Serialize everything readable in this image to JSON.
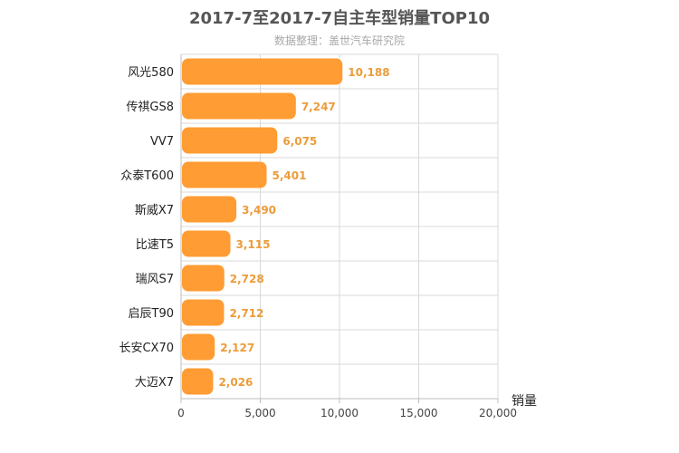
{
  "header": {
    "title": "2017-7至2017-7自主车型销量TOP10",
    "subtitle": "数据整理：盖世汽车研究院"
  },
  "chart_data": {
    "type": "bar",
    "orientation": "horizontal",
    "title": "2017-7至2017-7自主车型销量TOP10",
    "subtitle": "数据整理：盖世汽车研究院",
    "categories": [
      "风光580",
      "传祺GS8",
      "VV7",
      "众泰T600",
      "斯威X7",
      "比速T5",
      "瑞风S7",
      "启辰T90",
      "长安CX70",
      "大迈X7"
    ],
    "values": [
      10188,
      7247,
      6075,
      5401,
      3490,
      3115,
      2728,
      2712,
      2127,
      2026
    ],
    "value_labels": [
      "10,188",
      "7,247",
      "6,075",
      "5,401",
      "3,490",
      "3,115",
      "2,728",
      "2,712",
      "2,127",
      "2,026"
    ],
    "xlabel": "销量",
    "ylabel": "",
    "xlim": [
      0,
      20000
    ],
    "x_ticks": [
      0,
      5000,
      10000,
      15000,
      20000
    ],
    "x_tick_labels": [
      "0",
      "5,000",
      "10,000",
      "15,000",
      "20,000"
    ],
    "grid": true,
    "bar_color": "#ff9c33",
    "value_label_color": "#ec9c3a"
  }
}
